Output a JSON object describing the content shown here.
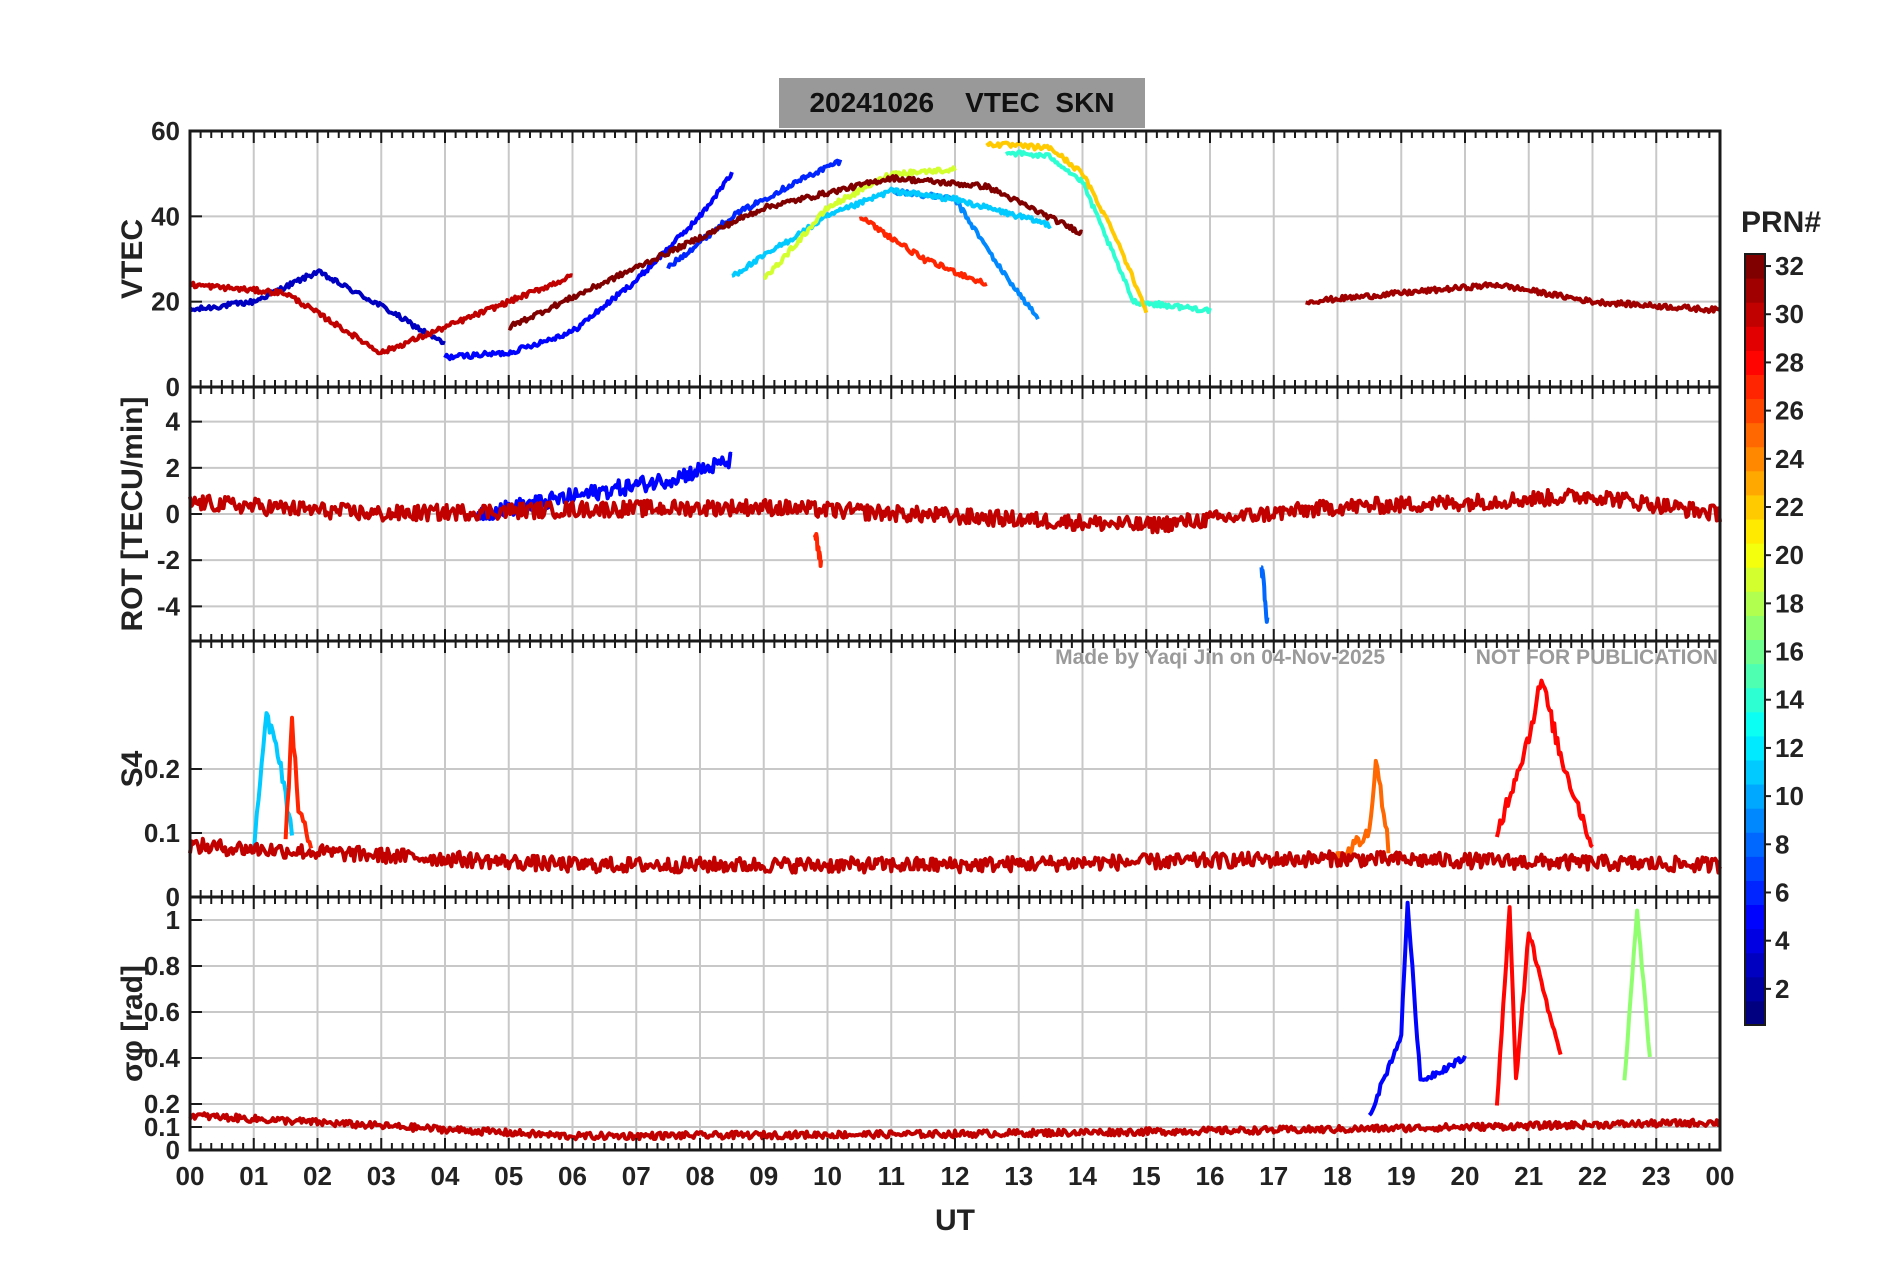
{
  "title": {
    "date": "20241026",
    "quantity": "VTEC",
    "station": "SKN"
  },
  "watermark": {
    "author": "Made by Yaqi Jin on 04-Nov-2025",
    "notice": "NOT FOR PUBLICATION"
  },
  "colors": {
    "background": "#ffffff",
    "title_box": "#999999",
    "grid": "#c8c8c8",
    "axis": "#1a1a1a"
  },
  "chart_data": [
    {
      "type": "line",
      "name": "vtec-panel",
      "ylabel": "VTEC",
      "ylim": [
        0,
        60
      ],
      "yticks": [
        "60",
        "40",
        "20",
        "0"
      ],
      "ytick_values": [
        60,
        40,
        20,
        0
      ],
      "xlim": [
        0,
        24
      ],
      "series": [
        {
          "prn": 3,
          "x": [
            0.0,
            1.0,
            2.0,
            3.0,
            4.0
          ],
          "y": [
            18,
            20,
            27,
            19,
            10
          ]
        },
        {
          "prn": 5,
          "x": [
            4.0,
            5.0,
            6.0,
            7.0,
            8.0,
            8.5
          ],
          "y": [
            7,
            8,
            13,
            25,
            40,
            50
          ]
        },
        {
          "prn": 6,
          "x": [
            7.5,
            8.5,
            9.5,
            10.2
          ],
          "y": [
            28,
            40,
            48,
            53
          ]
        },
        {
          "prn": 9,
          "x": [
            11.0,
            12.0,
            12.7,
            13.3
          ],
          "y": [
            46,
            44,
            28,
            16
          ]
        },
        {
          "prn": 11,
          "x": [
            8.5,
            10.0,
            11.0,
            12.0,
            13.5
          ],
          "y": [
            26,
            40,
            46,
            44,
            38
          ]
        },
        {
          "prn": 14,
          "x": [
            12.8,
            13.5,
            14.0,
            14.8,
            16.0
          ],
          "y": [
            55,
            54,
            48,
            20,
            18
          ]
        },
        {
          "prn": 19,
          "x": [
            9.0,
            10.0,
            11.0,
            12.0
          ],
          "y": [
            25,
            42,
            50,
            51
          ]
        },
        {
          "prn": 22,
          "x": [
            12.5,
            13.5,
            14.0,
            14.5,
            15.0
          ],
          "y": [
            57,
            56,
            50,
            36,
            18
          ]
        },
        {
          "prn": 27,
          "x": [
            10.5,
            11.5,
            12.5
          ],
          "y": [
            40,
            30,
            24
          ]
        },
        {
          "prn": 30,
          "x": [
            0.0,
            1.5,
            3.0,
            5.0,
            6.0
          ],
          "y": [
            24,
            22,
            8,
            20,
            26
          ]
        },
        {
          "prn": 32,
          "x": [
            5.0,
            7.0,
            9.0,
            11.0,
            12.5,
            14.0
          ],
          "y": [
            14,
            28,
            42,
            49,
            47,
            36
          ]
        },
        {
          "prn": 31,
          "x": [
            17.5,
            19.0,
            20.5,
            22.0,
            24.0
          ],
          "y": [
            20,
            22,
            24,
            20,
            18
          ]
        }
      ]
    },
    {
      "type": "line",
      "name": "rot-panel",
      "ylabel": "ROT [TECU/min]",
      "ylim": [
        -5.5,
        5.5
      ],
      "yticks": [
        "4",
        "2",
        "0",
        "-2",
        "-4"
      ],
      "ytick_values": [
        4,
        2,
        0,
        -2,
        -4
      ],
      "xlim": [
        0,
        24
      ],
      "series": [
        {
          "prn": 5,
          "x": [
            4.5,
            5.5,
            6.5,
            7.5,
            8.5
          ],
          "y": [
            0,
            0.5,
            1.0,
            1.5,
            2.3
          ]
        },
        {
          "prn": 8,
          "x": [
            16.8,
            16.9
          ],
          "y": [
            -2.0,
            -4.8
          ]
        },
        {
          "prn": 27,
          "x": [
            9.8,
            9.9
          ],
          "y": [
            -0.8,
            -2.3
          ]
        },
        {
          "prn": 30,
          "x": [
            0.0,
            3.0,
            6.0,
            9.0,
            12.0,
            15.0,
            18.0,
            20.0,
            22.0,
            24.0
          ],
          "y": [
            0.5,
            0,
            0.2,
            0.3,
            -0.1,
            -0.5,
            0.3,
            0.5,
            0.8,
            0
          ]
        }
      ]
    },
    {
      "type": "line",
      "name": "s4-panel",
      "ylabel": "S4",
      "ylim": [
        0,
        0.4
      ],
      "yticks": [
        "0.2",
        "0.1",
        "0"
      ],
      "ytick_values": [
        0.2,
        0.1,
        0
      ],
      "xlim": [
        0,
        24
      ],
      "series": [
        {
          "prn": 11,
          "x": [
            1.0,
            1.2,
            1.4,
            1.6
          ],
          "y": [
            0.08,
            0.28,
            0.22,
            0.1
          ]
        },
        {
          "prn": 27,
          "x": [
            1.5,
            1.6,
            1.7,
            1.9
          ],
          "y": [
            0.08,
            0.28,
            0.14,
            0.07
          ]
        },
        {
          "prn": 28,
          "x": [
            20.5,
            21.0,
            21.2,
            21.5,
            22.0
          ],
          "y": [
            0.1,
            0.25,
            0.34,
            0.22,
            0.08
          ]
        },
        {
          "prn": 25,
          "x": [
            18.0,
            18.5,
            18.6,
            18.8
          ],
          "y": [
            0.06,
            0.1,
            0.22,
            0.08
          ]
        },
        {
          "prn": 30,
          "x": [
            0.0,
            6.0,
            12.0,
            18.0,
            24.0
          ],
          "y": [
            0.08,
            0.05,
            0.05,
            0.06,
            0.05
          ]
        }
      ]
    },
    {
      "type": "line",
      "name": "sigma-phi-panel",
      "ylabel": "σφ [rad]",
      "ylim": [
        0,
        1.1
      ],
      "yticks": [
        "1",
        "0.8",
        "0.6",
        "0.4",
        "0.2",
        "0.1",
        "0"
      ],
      "ytick_values": [
        1,
        0.8,
        0.6,
        0.4,
        0.2,
        0.1,
        0
      ],
      "xlim": [
        0,
        24
      ],
      "xlabel": "UT",
      "xticks": [
        "00",
        "01",
        "02",
        "03",
        "04",
        "05",
        "06",
        "07",
        "08",
        "09",
        "10",
        "11",
        "12",
        "13",
        "14",
        "15",
        "16",
        "17",
        "18",
        "19",
        "20",
        "21",
        "22",
        "23",
        "00"
      ],
      "series": [
        {
          "prn": 5,
          "x": [
            18.5,
            19.0,
            19.1,
            19.3,
            20.0
          ],
          "y": [
            0.15,
            0.5,
            1.08,
            0.3,
            0.4
          ]
        },
        {
          "prn": 28,
          "x": [
            20.5,
            20.7,
            20.8,
            21.0,
            21.5
          ],
          "y": [
            0.2,
            1.05,
            0.3,
            0.95,
            0.4
          ]
        },
        {
          "prn": 17,
          "x": [
            22.5,
            22.7,
            22.9
          ],
          "y": [
            0.3,
            1.05,
            0.4
          ]
        },
        {
          "prn": 30,
          "x": [
            0.0,
            6.0,
            12.0,
            18.0,
            24.0
          ],
          "y": [
            0.15,
            0.06,
            0.07,
            0.09,
            0.12
          ]
        }
      ]
    }
  ],
  "colorbar": {
    "label": "PRN#",
    "min": 1,
    "max": 32,
    "ticks": [
      "32",
      "30",
      "28",
      "26",
      "24",
      "22",
      "20",
      "18",
      "16",
      "14",
      "12",
      "10",
      "8",
      "6",
      "4",
      "2"
    ],
    "tick_values": [
      32,
      30,
      28,
      26,
      24,
      22,
      20,
      18,
      16,
      14,
      12,
      10,
      8,
      6,
      4,
      2
    ]
  }
}
